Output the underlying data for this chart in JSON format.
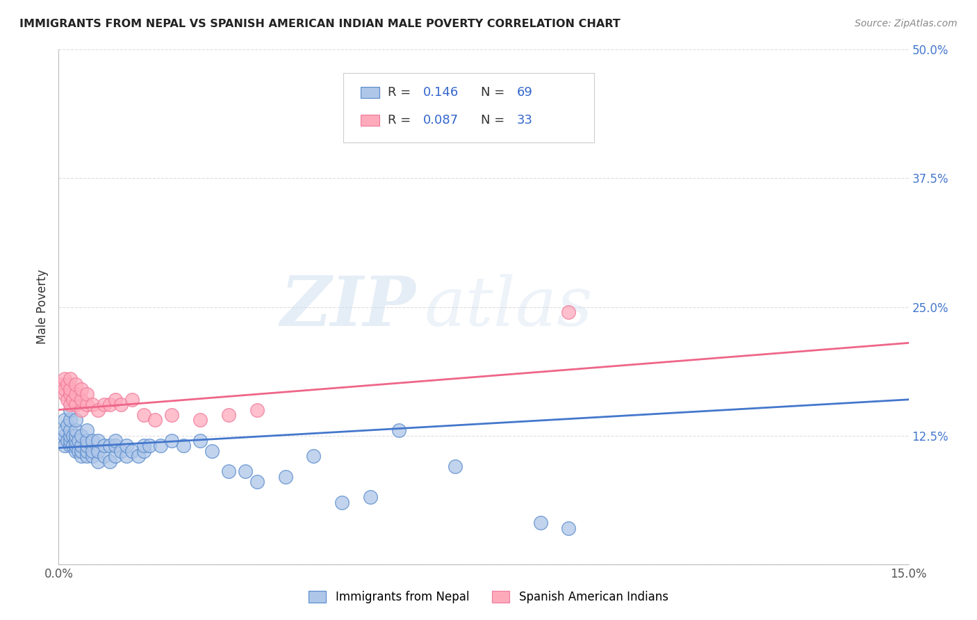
{
  "title": "IMMIGRANTS FROM NEPAL VS SPANISH AMERICAN INDIAN MALE POVERTY CORRELATION CHART",
  "source": "Source: ZipAtlas.com",
  "ylabel": "Male Poverty",
  "x_min": 0.0,
  "x_max": 0.15,
  "y_min": 0.0,
  "y_max": 0.5,
  "legend_label1": "Immigrants from Nepal",
  "legend_label2": "Spanish American Indians",
  "R1": 0.146,
  "N1": 69,
  "R2": 0.087,
  "N2": 33,
  "color1": "#AEC6E8",
  "color2": "#FFAABB",
  "edge_color1": "#5588CC",
  "edge_color2": "#EE7799",
  "line_color1": "#4477CC",
  "line_color2": "#EE6688",
  "watermark_zip": "ZIP",
  "watermark_atlas": "atlas",
  "background_color": "#FFFFFF",
  "grid_color": "#DDDDDD",
  "nepal_x": [
    0.0005,
    0.001,
    0.001,
    0.001,
    0.001,
    0.0015,
    0.0015,
    0.002,
    0.002,
    0.002,
    0.002,
    0.002,
    0.002,
    0.0025,
    0.0025,
    0.003,
    0.003,
    0.003,
    0.003,
    0.003,
    0.003,
    0.0035,
    0.0035,
    0.004,
    0.004,
    0.004,
    0.004,
    0.005,
    0.005,
    0.005,
    0.005,
    0.005,
    0.006,
    0.006,
    0.006,
    0.007,
    0.007,
    0.007,
    0.008,
    0.008,
    0.009,
    0.009,
    0.01,
    0.01,
    0.01,
    0.011,
    0.012,
    0.012,
    0.013,
    0.014,
    0.015,
    0.015,
    0.016,
    0.018,
    0.02,
    0.022,
    0.025,
    0.027,
    0.03,
    0.033,
    0.035,
    0.04,
    0.045,
    0.05,
    0.055,
    0.06,
    0.07,
    0.085,
    0.09
  ],
  "nepal_y": [
    0.12,
    0.125,
    0.115,
    0.13,
    0.14,
    0.12,
    0.135,
    0.115,
    0.12,
    0.125,
    0.13,
    0.14,
    0.15,
    0.115,
    0.125,
    0.11,
    0.115,
    0.12,
    0.125,
    0.13,
    0.14,
    0.11,
    0.12,
    0.105,
    0.11,
    0.115,
    0.125,
    0.105,
    0.11,
    0.115,
    0.12,
    0.13,
    0.105,
    0.11,
    0.12,
    0.1,
    0.11,
    0.12,
    0.105,
    0.115,
    0.1,
    0.115,
    0.105,
    0.115,
    0.12,
    0.11,
    0.105,
    0.115,
    0.11,
    0.105,
    0.11,
    0.115,
    0.115,
    0.115,
    0.12,
    0.115,
    0.12,
    0.11,
    0.09,
    0.09,
    0.08,
    0.085,
    0.105,
    0.06,
    0.065,
    0.13,
    0.095,
    0.04,
    0.035
  ],
  "spanish_x": [
    0.0005,
    0.001,
    0.001,
    0.001,
    0.0015,
    0.0015,
    0.002,
    0.002,
    0.002,
    0.002,
    0.0025,
    0.003,
    0.003,
    0.003,
    0.004,
    0.004,
    0.004,
    0.005,
    0.005,
    0.006,
    0.007,
    0.008,
    0.009,
    0.01,
    0.011,
    0.013,
    0.015,
    0.017,
    0.02,
    0.025,
    0.03,
    0.035,
    0.09
  ],
  "spanish_y": [
    0.175,
    0.165,
    0.17,
    0.18,
    0.16,
    0.175,
    0.155,
    0.165,
    0.17,
    0.18,
    0.16,
    0.155,
    0.165,
    0.175,
    0.15,
    0.16,
    0.17,
    0.155,
    0.165,
    0.155,
    0.15,
    0.155,
    0.155,
    0.16,
    0.155,
    0.16,
    0.145,
    0.14,
    0.145,
    0.14,
    0.145,
    0.15,
    0.245
  ],
  "trend1_x0": 0.0,
  "trend1_y0": 0.113,
  "trend1_x1": 0.15,
  "trend1_y1": 0.16,
  "trend2_x0": 0.0,
  "trend2_y0": 0.15,
  "trend2_x1": 0.15,
  "trend2_y1": 0.215
}
